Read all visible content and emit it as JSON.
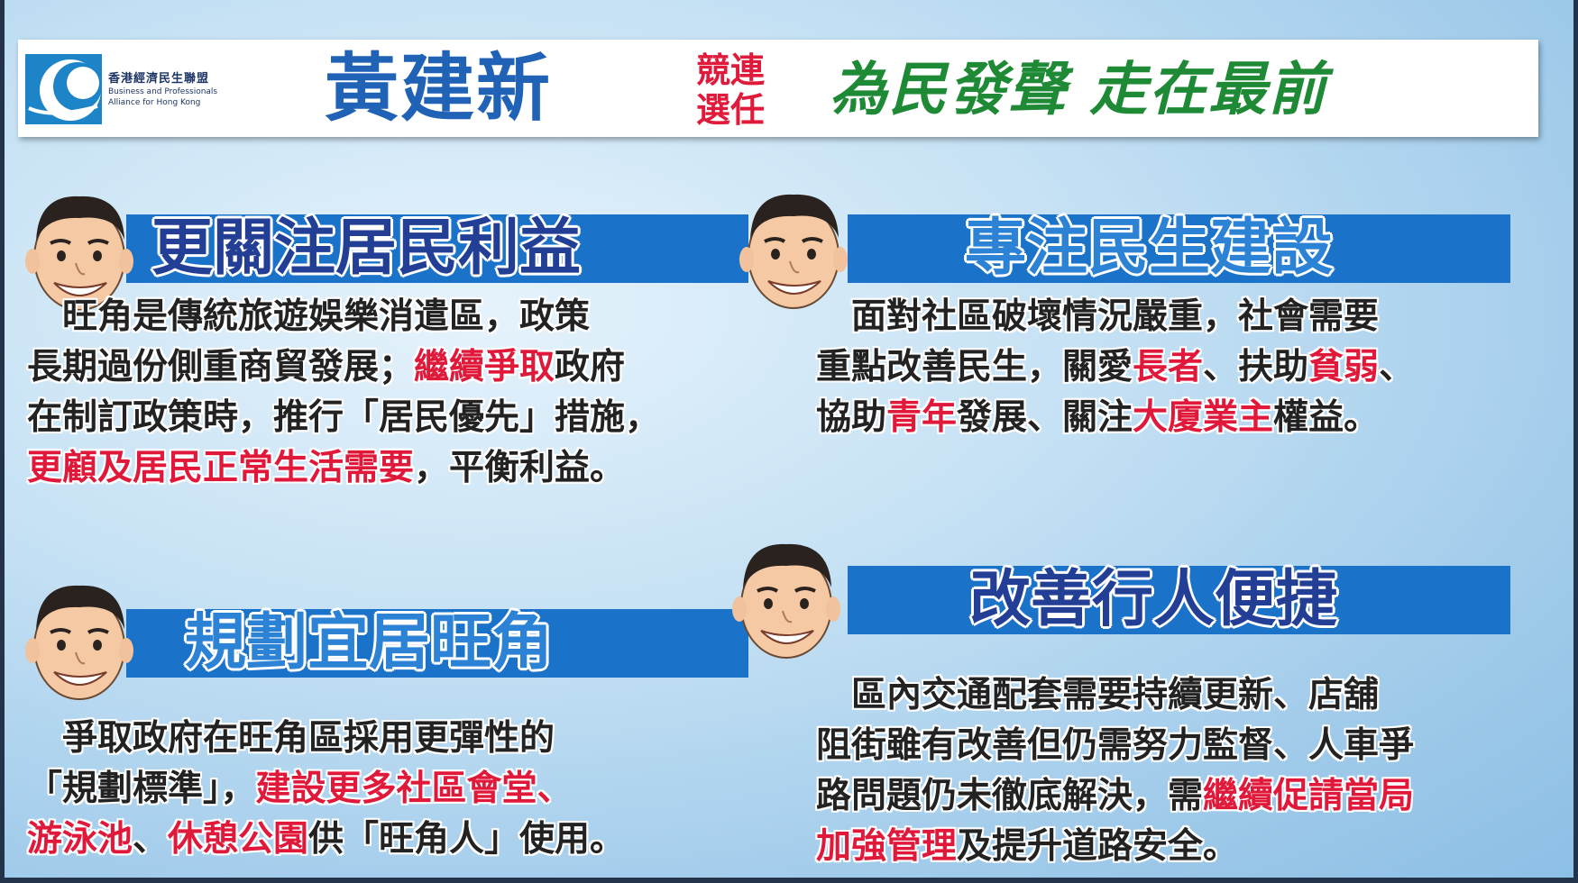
{
  "header": {
    "logo_cn": "香港經濟民生聯盟",
    "logo_en1": "Business and Professionals",
    "logo_en2": "Alliance for Hong Kong",
    "candidate": "黃建新",
    "tag_line1": "競連",
    "tag_line2": "選任",
    "slogan": "為民發聲 走在最前"
  },
  "sections": [
    {
      "heading": "更關注居民利益",
      "lines": [
        [
          {
            "t": "　旺角是傳統旅遊娛樂消遣區，政策"
          }
        ],
        [
          {
            "t": "長期過份側重商貿發展；"
          },
          {
            "t": "繼續爭取",
            "hl": true
          },
          {
            "t": "政府"
          }
        ],
        [
          {
            "t": "在制訂政策時，推行「居民優先」措施，"
          }
        ],
        [
          {
            "t": "更顧及居民正常生活需要",
            "hl": true
          },
          {
            "t": "，平衡利益。"
          }
        ]
      ]
    },
    {
      "heading": "專注民生建設",
      "lines": [
        [
          {
            "t": "　面對社區破壞情況嚴重，社會需要"
          }
        ],
        [
          {
            "t": "重點改善民生，關愛"
          },
          {
            "t": "長者",
            "hl": true
          },
          {
            "t": "、扶助"
          },
          {
            "t": "貧弱",
            "hl": true
          },
          {
            "t": "、"
          }
        ],
        [
          {
            "t": "協助"
          },
          {
            "t": "青年",
            "hl": true
          },
          {
            "t": "發展、關注"
          },
          {
            "t": "大廈業主",
            "hl": true
          },
          {
            "t": "權益。"
          }
        ]
      ]
    },
    {
      "heading": "規劃宜居旺角",
      "lines": [
        [
          {
            "t": "　爭取政府在旺角區採用更彈性的"
          }
        ],
        [
          {
            "t": "「規劃標準」，"
          },
          {
            "t": "建設更多社區會堂、",
            "hl": true
          }
        ],
        [
          {
            "t": "游泳池",
            "hl": true
          },
          {
            "t": "、"
          },
          {
            "t": "休憩公園",
            "hl": true
          },
          {
            "t": "供「旺角人」使用。"
          }
        ]
      ]
    },
    {
      "heading": "改善行人便捷",
      "lines": [
        [
          {
            "t": "　區內交通配套需要持續更新、店舖"
          }
        ],
        [
          {
            "t": "阻街雖有改善但仍需努力監督、人車爭"
          }
        ],
        [
          {
            "t": "路問題仍未徹底解決，需"
          },
          {
            "t": "繼續促請當局",
            "hl": true
          }
        ],
        [
          {
            "t": "加強管理",
            "hl": true
          },
          {
            "t": "及提升道路安全。"
          }
        ]
      ]
    }
  ],
  "colors": {
    "heading_blue": "#233f95",
    "highlight_red": "#e0193b",
    "slogan_green": "#1e8a35",
    "name_blue": "#1f62b6"
  }
}
